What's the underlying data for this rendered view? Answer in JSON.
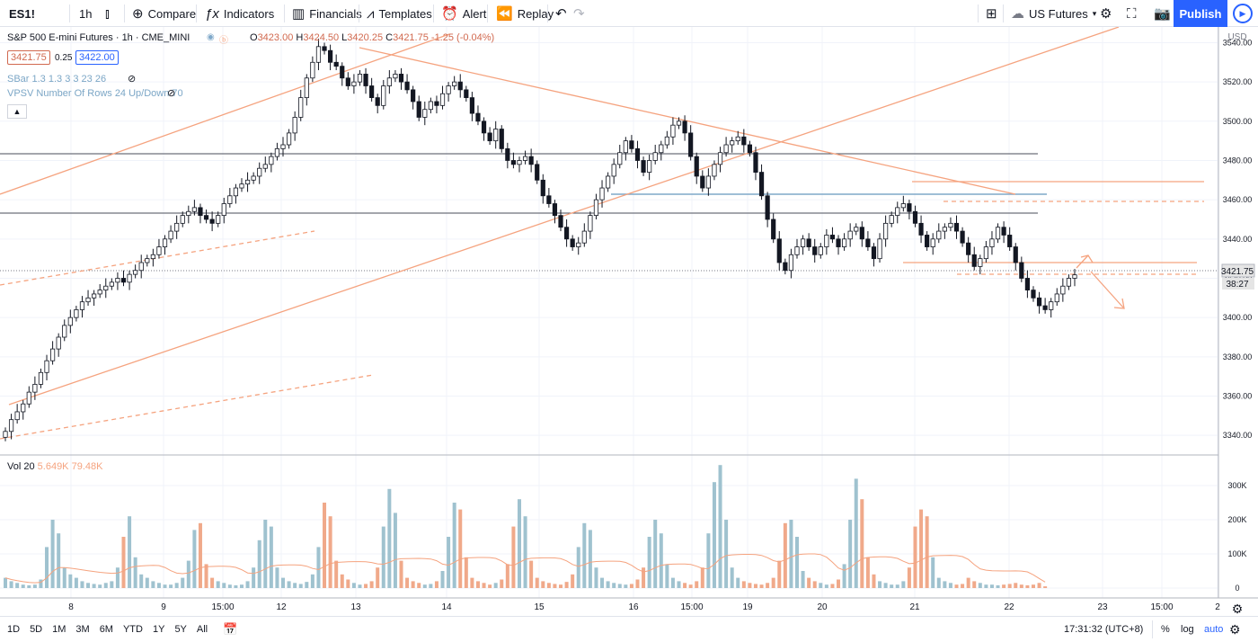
{
  "toolbar": {
    "symbol": "ES1!",
    "interval": "1h",
    "compare": "Compare",
    "indicators": "Indicators",
    "financials": "Financials",
    "templates": "Templates",
    "alert": "Alert",
    "replay": "Replay",
    "watchlist": "US Futures",
    "publish": "Publish"
  },
  "legend": {
    "title": "S&P 500 E-mini Futures · 1h · CME_MINI",
    "open": "3423.00",
    "high": "3424.50",
    "low": "3420.25",
    "close": "3421.75",
    "change": "-1.25 (-0.04%)",
    "bid": "3421.75",
    "spread": "0.25",
    "ask": "3422.00",
    "sbar": "SBar 1.3 1.3 3 3 23 26",
    "vpsv": "VPSV Number Of Rows 24 Up/Down 70",
    "vol_label": "Vol 20",
    "vol_val1": "5.649K",
    "vol_val2": "79.48K"
  },
  "price_axis": {
    "currency": "USD",
    "ticks": [
      "3540.00",
      "3520.00",
      "3500.00",
      "3480.00",
      "3460.00",
      "3440.00",
      "3420.00",
      "3400.00",
      "3380.00",
      "3360.00",
      "3340.00"
    ],
    "last_price": "3421.75",
    "countdown": "38:27"
  },
  "volume_axis": {
    "ticks": [
      "300K",
      "200K",
      "100K",
      "0"
    ]
  },
  "time_axis": {
    "labels": [
      "8",
      "9",
      "15:00",
      "12",
      "13",
      "14",
      "15",
      "16",
      "15:00",
      "19",
      "20",
      "21",
      "22",
      "23",
      "15:00",
      "2"
    ]
  },
  "bottom": {
    "ranges": [
      "1D",
      "5D",
      "1M",
      "3M",
      "6M",
      "YTD",
      "1Y",
      "5Y",
      "All"
    ],
    "clock": "17:31:32 (UTC+8)",
    "percent": "%",
    "log": "log",
    "auto": "auto"
  },
  "colors": {
    "up": "#ffffff",
    "down": "#131722",
    "orange": "#f5a37f",
    "blue": "#7fa8c9",
    "accent": "#2962ff"
  },
  "chart_data": {
    "type": "candlestick",
    "symbol": "ES1!",
    "ylim": [
      3330,
      3548
    ],
    "closes": [
      3342,
      3348,
      3352,
      3356,
      3362,
      3366,
      3372,
      3378,
      3384,
      3390,
      3396,
      3400,
      3404,
      3408,
      3410,
      3412,
      3414,
      3416,
      3418,
      3420,
      3418,
      3422,
      3424,
      3428,
      3430,
      3432,
      3436,
      3440,
      3444,
      3448,
      3452,
      3454,
      3456,
      3452,
      3450,
      3448,
      3452,
      3458,
      3462,
      3466,
      3468,
      3470,
      3472,
      3476,
      3478,
      3482,
      3486,
      3488,
      3494,
      3502,
      3512,
      3522,
      3530,
      3538,
      3536,
      3530,
      3528,
      3522,
      3518,
      3520,
      3524,
      3518,
      3512,
      3508,
      3518,
      3522,
      3524,
      3520,
      3516,
      3510,
      3502,
      3506,
      3510,
      3508,
      3514,
      3518,
      3520,
      3516,
      3512,
      3504,
      3500,
      3494,
      3490,
      3496,
      3486,
      3480,
      3478,
      3480,
      3482,
      3478,
      3470,
      3462,
      3458,
      3452,
      3446,
      3440,
      3436,
      3438,
      3444,
      3452,
      3460,
      3466,
      3472,
      3478,
      3484,
      3490,
      3486,
      3480,
      3474,
      3480,
      3484,
      3488,
      3492,
      3498,
      3500,
      3494,
      3482,
      3472,
      3466,
      3472,
      3478,
      3484,
      3488,
      3490,
      3492,
      3488,
      3484,
      3474,
      3462,
      3450,
      3440,
      3428,
      3424,
      3432,
      3436,
      3440,
      3436,
      3432,
      3436,
      3442,
      3440,
      3436,
      3440,
      3444,
      3446,
      3440,
      3436,
      3430,
      3440,
      3448,
      3452,
      3456,
      3458,
      3454,
      3448,
      3442,
      3436,
      3440,
      3444,
      3446,
      3448,
      3444,
      3438,
      3432,
      3426,
      3430,
      3436,
      3440,
      3446,
      3442,
      3436,
      3428,
      3420,
      3414,
      3410,
      3406,
      3404,
      3408,
      3412,
      3416,
      3420,
      3421.75
    ],
    "volumes": [
      30,
      20,
      15,
      10,
      8,
      10,
      25,
      120,
      200,
      160,
      60,
      40,
      30,
      20,
      15,
      12,
      10,
      15,
      20,
      60,
      150,
      210,
      90,
      40,
      30,
      20,
      15,
      10,
      10,
      15,
      30,
      80,
      170,
      190,
      70,
      30,
      20,
      15,
      10,
      8,
      10,
      20,
      60,
      140,
      200,
      180,
      60,
      30,
      20,
      15,
      12,
      18,
      40,
      120,
      250,
      210,
      80,
      40,
      25,
      15,
      10,
      12,
      20,
      60,
      180,
      290,
      220,
      80,
      30,
      20,
      15,
      10,
      12,
      20,
      50,
      150,
      250,
      230,
      90,
      30,
      20,
      15,
      10,
      15,
      25,
      70,
      180,
      260,
      210,
      80,
      30,
      20,
      15,
      12,
      10,
      18,
      40,
      120,
      190,
      170,
      60,
      30,
      20,
      15,
      12,
      10,
      12,
      25,
      60,
      150,
      200,
      160,
      70,
      30,
      20,
      15,
      10,
      20,
      60,
      160,
      310,
      360,
      200,
      60,
      30,
      20,
      15,
      12,
      10,
      15,
      30,
      80,
      190,
      200,
      150,
      50,
      30,
      20,
      15,
      10,
      12,
      25,
      70,
      200,
      320,
      260,
      90,
      40,
      20,
      15,
      10,
      10,
      20,
      60,
      180,
      230,
      210,
      90,
      30,
      20,
      15,
      10,
      12,
      30,
      20,
      15,
      10,
      10,
      8,
      10,
      12,
      15,
      10,
      8,
      10,
      15,
      5
    ]
  }
}
